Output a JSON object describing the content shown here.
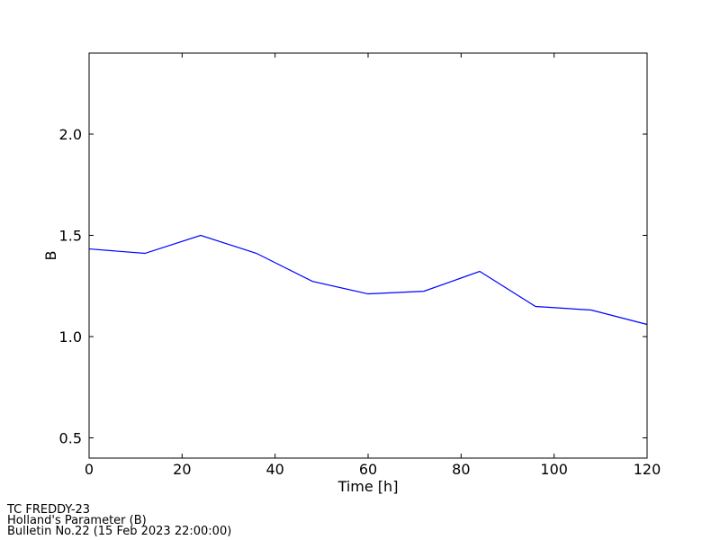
{
  "chart_data": {
    "type": "line",
    "xlabel": "Time [h]",
    "ylabel": "B",
    "x": [
      0,
      12,
      24,
      36,
      48,
      60,
      72,
      84,
      96,
      108,
      120
    ],
    "series": [
      {
        "color": "#0000ff",
        "values": [
          1.433,
          1.411,
          1.5,
          1.411,
          1.273,
          1.211,
          1.224,
          1.322,
          1.149,
          1.131,
          1.06
        ]
      }
    ],
    "xlim": [
      0,
      120
    ],
    "xticks": [
      0,
      20,
      40,
      60,
      80,
      100,
      120
    ],
    "ylim": [
      0.4,
      2.4
    ],
    "yticks": [
      0.5,
      {
        "value": 1.0,
        "label": "1.0"
      },
      1.5,
      {
        "value": 2.0,
        "label": "2.0"
      }
    ],
    "grid": false,
    "annotations": [
      "TC FREDDY-23",
      "Holland's Parameter (B)",
      "Bulletin No.22 (15 Feb 2023  22:00:00)"
    ]
  }
}
